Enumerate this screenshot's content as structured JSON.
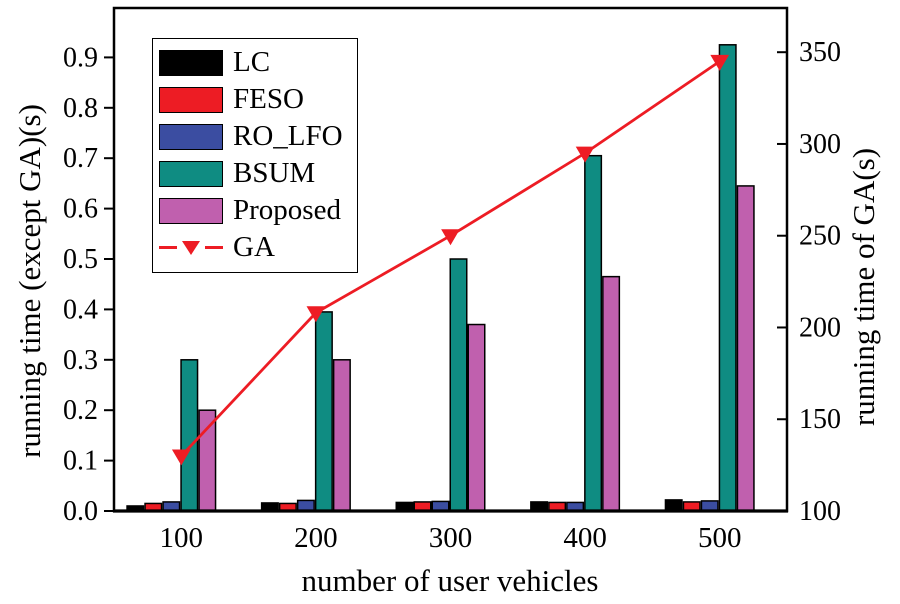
{
  "chart_data": {
    "type": "bar",
    "title": "",
    "categories": [
      "100",
      "200",
      "300",
      "400",
      "500"
    ],
    "series": [
      {
        "name": "LC",
        "color": "#000000",
        "axis": "left",
        "values": [
          0.01,
          0.016,
          0.017,
          0.018,
          0.022
        ]
      },
      {
        "name": "FESO",
        "color": "#ED1C24",
        "axis": "left",
        "values": [
          0.015,
          0.015,
          0.018,
          0.017,
          0.018
        ]
      },
      {
        "name": "RO_LFO",
        "color": "#3B4DA1",
        "axis": "left",
        "values": [
          0.018,
          0.021,
          0.019,
          0.017,
          0.02
        ]
      },
      {
        "name": "BSUM",
        "color": "#0F8C82",
        "axis": "left",
        "values": [
          0.3,
          0.395,
          0.5,
          0.705,
          0.925
        ]
      },
      {
        "name": "Proposed",
        "color": "#C060AE",
        "axis": "left",
        "values": [
          0.2,
          0.3,
          0.37,
          0.465,
          0.645
        ]
      }
    ],
    "line_series": [
      {
        "name": "GA",
        "color": "#ED1C24",
        "axis": "right",
        "marker": "triangle-down",
        "values": [
          130,
          208,
          250,
          295,
          345
        ]
      }
    ],
    "x_axis": {
      "label": "number of user vehicles",
      "tick_labels": [
        "100",
        "200",
        "300",
        "400",
        "500"
      ]
    },
    "left_axis": {
      "label": "running time (except GA)(s)",
      "min": 0.0,
      "max": 1.0,
      "tick_labels": [
        "0.0",
        "0.1",
        "0.2",
        "0.3",
        "0.4",
        "0.5",
        "0.6",
        "0.7",
        "0.8",
        "0.9"
      ],
      "tick_values": [
        0.0,
        0.1,
        0.2,
        0.3,
        0.4,
        0.5,
        0.6,
        0.7,
        0.8,
        0.9
      ]
    },
    "right_axis": {
      "label": "running time of GA(s)",
      "min": 100,
      "max": 374,
      "tick_labels": [
        "100",
        "150",
        "200",
        "250",
        "300",
        "350"
      ],
      "tick_values": [
        100,
        150,
        200,
        250,
        300,
        350
      ]
    },
    "legend": {
      "position": "top-left",
      "items": [
        {
          "label": "LC",
          "type": "bar",
          "color": "#000000"
        },
        {
          "label": "FESO",
          "type": "bar",
          "color": "#ED1C24"
        },
        {
          "label": "RO_LFO",
          "type": "bar",
          "color": "#3B4DA1"
        },
        {
          "label": "BSUM",
          "type": "bar",
          "color": "#0F8C82"
        },
        {
          "label": "Proposed",
          "type": "bar",
          "color": "#C060AE"
        },
        {
          "label": "GA",
          "type": "line",
          "color": "#ED1C24"
        }
      ]
    },
    "grid": "off",
    "colors": {
      "frame": "#000000",
      "background": "#FFFFFF",
      "ga_line": "#ED1C24"
    }
  }
}
